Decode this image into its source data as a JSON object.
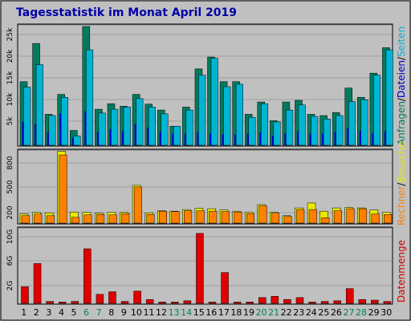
{
  "chart_data": {
    "type": "bar",
    "title": "Tagesstatistik im Monat April 2019",
    "categories": [
      "1",
      "2",
      "3",
      "4",
      "5",
      "6",
      "7",
      "8",
      "9",
      "10",
      "11",
      "12",
      "13",
      "14",
      "15",
      "16",
      "17",
      "18",
      "19",
      "20",
      "21",
      "22",
      "23",
      "24",
      "25",
      "26",
      "27",
      "28",
      "29",
      "30"
    ],
    "weekend_days": [
      "6",
      "7",
      "13",
      "14",
      "20",
      "21",
      "27",
      "28"
    ],
    "legend_right": [
      {
        "label": "Anfragen",
        "color": "#007b5e"
      },
      {
        "label": "Dateien",
        "color": "#0000cc"
      },
      {
        "label": "Seiten",
        "color": "#00b5d4"
      },
      {
        "label": "Rechner",
        "color": "#ff8000"
      },
      {
        "label": "Besuche",
        "color": "#e8e800"
      },
      {
        "label": "Datenmenge",
        "color": "#d00000"
      }
    ],
    "panels": [
      {
        "name": "requests",
        "y_ticks": [
          "25k",
          "20k",
          "15k",
          "10k",
          "5k"
        ],
        "ylim": [
          0,
          28000
        ],
        "series": [
          {
            "name": "Anfragen",
            "color": "#007b5e",
            "values": [
              15000,
              24000,
              7300,
              12000,
              3500,
              28000,
              8500,
              9800,
              9200,
              12000,
              9700,
              8300,
              4500,
              9000,
              18000,
              20800,
              15000,
              15000,
              7300,
              10200,
              5800,
              10200,
              10600,
              7300,
              7000,
              7700,
              13500,
              11300,
              17000,
              23000
            ]
          },
          {
            "name": "Dateien",
            "color": "#0000cc",
            "values": [
              5500,
              5000,
              3000,
              7500,
              1700,
              8000,
              3200,
              3800,
              3300,
              5000,
              4200,
              3200,
              2700,
              2800,
              3000,
              2800,
              2600,
              2500,
              2700,
              3000,
              2200,
              2800,
              3300,
              2700,
              2700,
              3200,
              4000,
              3400,
              2800,
              3300
            ]
          },
          {
            "name": "Seiten",
            "color": "#00b5d4",
            "values": [
              13700,
              19000,
              7000,
              11300,
              2200,
              22500,
              7600,
              8500,
              9000,
              11000,
              9000,
              7400,
              4500,
              8300,
              16500,
              20500,
              13800,
              14400,
              6600,
              9800,
              5500,
              8300,
              9500,
              6800,
              6200,
              7000,
              10300,
              10700,
              16500,
              22500
            ]
          }
        ]
      },
      {
        "name": "visits",
        "y_ticks": [
          "800",
          "500",
          "200"
        ],
        "ylim": [
          0,
          870
        ],
        "series": [
          {
            "name": "Besuche",
            "color": "#e8e800",
            "values": [
              110,
              130,
              125,
              875,
              135,
              130,
              120,
              130,
              130,
              460,
              125,
              150,
              145,
              165,
              180,
              175,
              160,
              145,
              130,
              225,
              130,
              90,
              185,
              245,
              145,
              185,
              190,
              185,
              160,
              130
            ]
          },
          {
            "name": "Rechner",
            "color": "#ff8000",
            "values": [
              90,
              110,
              90,
              830,
              70,
              100,
              105,
              100,
              115,
              440,
              105,
              145,
              140,
              150,
              150,
              145,
              140,
              135,
              115,
              210,
              120,
              80,
              165,
              165,
              65,
              150,
              175,
              175,
              110,
              105
            ]
          }
        ]
      },
      {
        "name": "traffic",
        "y_ticks": [
          "10G",
          "6G",
          "2G"
        ],
        "unit": "GB",
        "ylim": [
          0,
          11.5
        ],
        "series": [
          {
            "name": "Datenmenge",
            "color": "#e00000",
            "values": [
              2.6,
              6.2,
              0.3,
              0.2,
              0.3,
              8.5,
              1.4,
              1.8,
              0.3,
              1.9,
              0.6,
              0.2,
              0.2,
              0.4,
              10.9,
              0.2,
              4.8,
              0.2,
              0.2,
              0.9,
              1.1,
              0.6,
              0.9,
              0.2,
              0.3,
              0.4,
              2.3,
              0.6,
              0.5,
              0.3
            ]
          }
        ]
      }
    ]
  }
}
